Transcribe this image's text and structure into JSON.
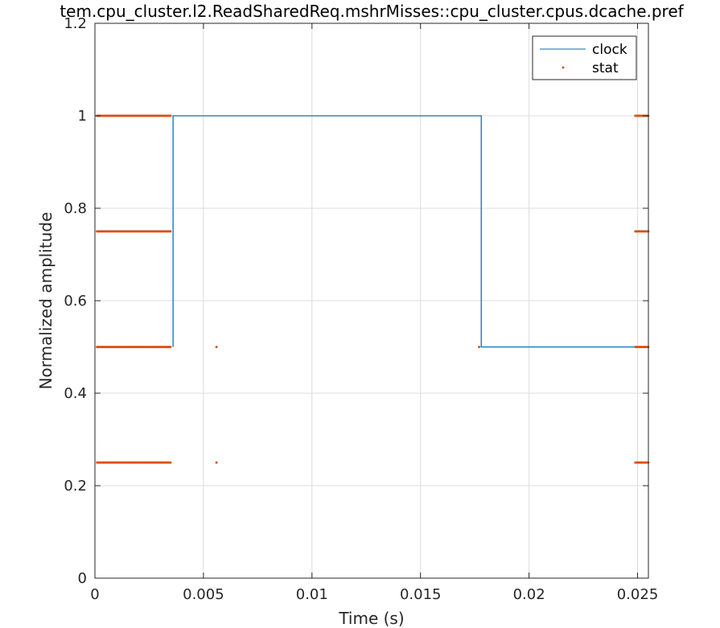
{
  "chart_data": {
    "type": "line",
    "title": "tem.cpu_cluster.l2.ReadSharedReq.mshrMisses::cpu_cluster.cpus.dcache.pref",
    "xlabel": "Time (s)",
    "ylabel": "Normalized amplitude",
    "xlim": [
      0,
      0.0255
    ],
    "ylim": [
      0,
      1.2
    ],
    "xticks": [
      0,
      0.005,
      0.01,
      0.015,
      0.02,
      0.025
    ],
    "xtick_labels": [
      "0",
      "0.005",
      "0.01",
      "0.015",
      "0.02",
      "0.025"
    ],
    "yticks": [
      0,
      0.2,
      0.4,
      0.6,
      0.8,
      1,
      1.2
    ],
    "ytick_labels": [
      "0",
      "0.2",
      "0.4",
      "0.6",
      "0.8",
      "1",
      "1.2"
    ],
    "grid": true,
    "legend_position": "top-right",
    "series": [
      {
        "name": "clock",
        "style": "line",
        "color": "#0072bd",
        "x": [
          0.0036,
          0.0036,
          0.0178,
          0.0178,
          0.0255
        ],
        "y": [
          0.5,
          1.0,
          1.0,
          0.5,
          0.5
        ]
      },
      {
        "name": "stat",
        "style": "points",
        "color": "#d95319",
        "clusters": [
          {
            "x_start": 0.0001,
            "x_end": 0.0035,
            "y": 1.0
          },
          {
            "x_start": 0.0001,
            "x_end": 0.0035,
            "y": 0.75
          },
          {
            "x_start": 0.0001,
            "x_end": 0.0035,
            "y": 0.5
          },
          {
            "x_start": 0.0001,
            "x_end": 0.0035,
            "y": 0.25
          },
          {
            "x_start": 0.0249,
            "x_end": 0.0255,
            "y": 1.0
          },
          {
            "x_start": 0.0249,
            "x_end": 0.0255,
            "y": 0.75
          },
          {
            "x_start": 0.0249,
            "x_end": 0.0255,
            "y": 0.5
          },
          {
            "x_start": 0.0249,
            "x_end": 0.0255,
            "y": 0.25
          }
        ],
        "points": [
          {
            "x": 0.0056,
            "y": 0.5
          },
          {
            "x": 0.0056,
            "y": 0.25
          },
          {
            "x": 0.0177,
            "y": 0.5
          }
        ]
      }
    ]
  }
}
